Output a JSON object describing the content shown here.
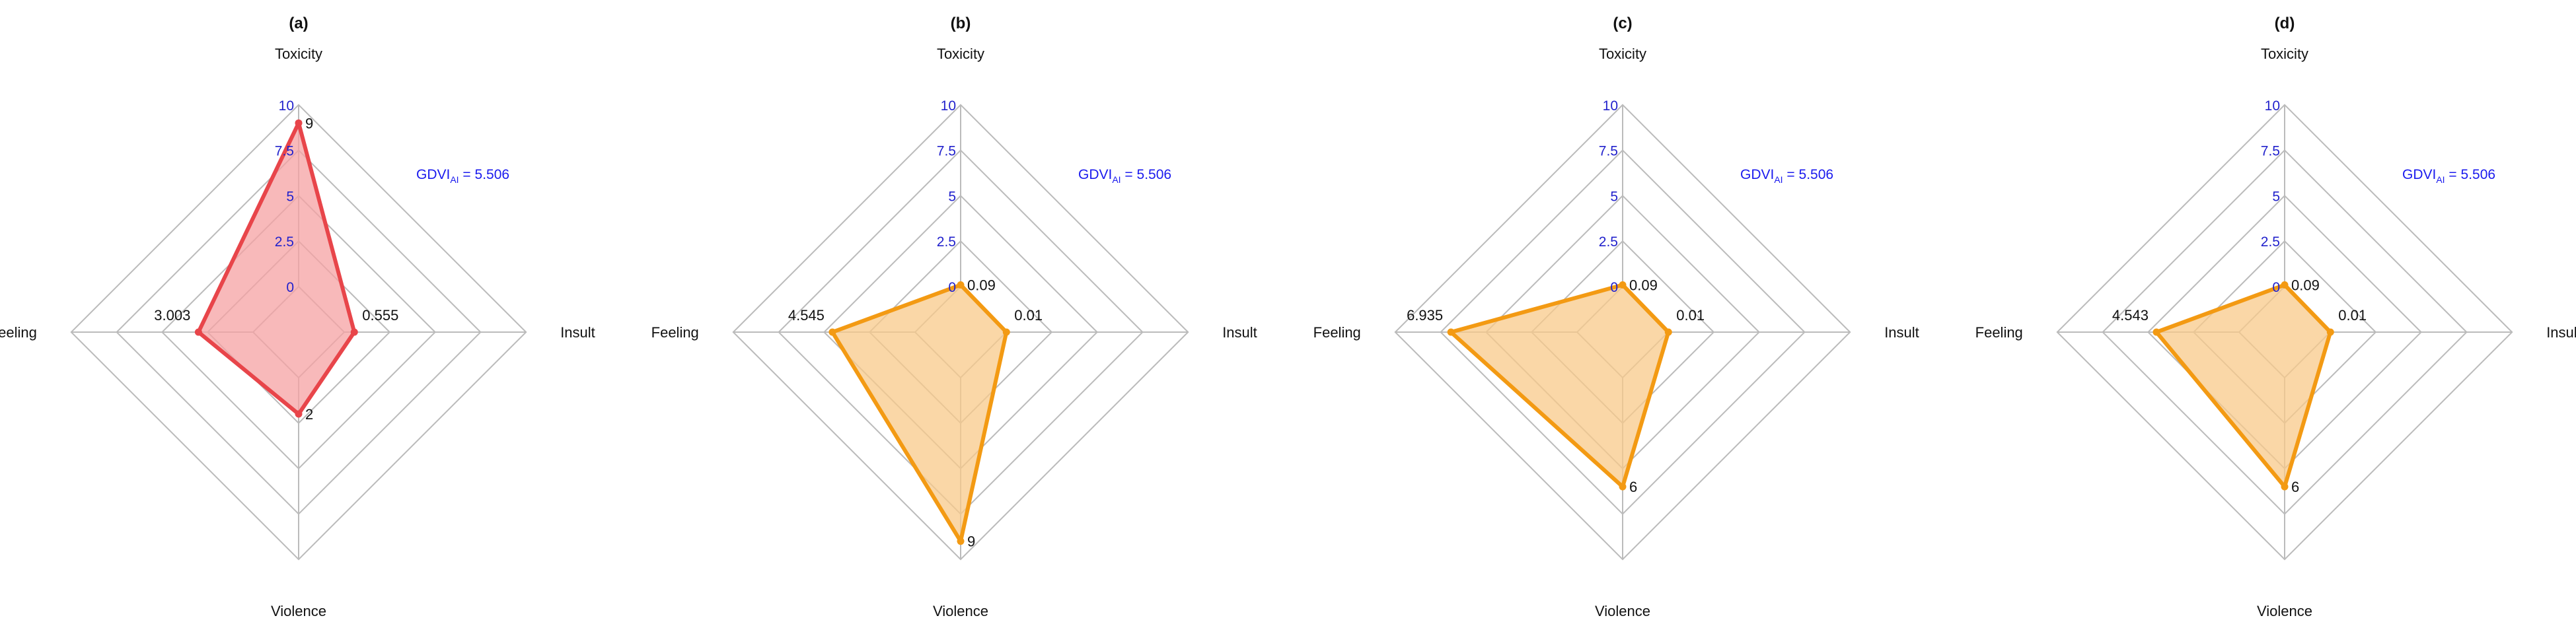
{
  "colors": {
    "grid": "#bbbbbb",
    "axis_tick": "#2222cc",
    "gdvi": "#1a1aee",
    "red_line": "#e8454a",
    "red_fill": "#f6a1a3",
    "orange_line": "#f39a13",
    "orange_fill": "#f8c98a"
  },
  "chart_data": [
    {
      "type": "radar",
      "title": "(a)",
      "axes": [
        "Toxicity",
        "Insult",
        "Violence",
        "Feeling"
      ],
      "values": [
        9,
        0.555,
        2,
        3.003
      ],
      "value_labels": [
        "9",
        "0.555",
        "2",
        "3.003"
      ],
      "rlim": [
        0,
        10
      ],
      "ticks": [
        "0",
        "2.5",
        "5",
        "7.5",
        "10"
      ],
      "tick_values": [
        0,
        2.5,
        5,
        7.5,
        10
      ],
      "annotation": {
        "prefix": "GDVI",
        "sub": "AI",
        "suffix": " = 5.506"
      },
      "color": "red"
    },
    {
      "type": "radar",
      "title": "(b)",
      "axes": [
        "Toxicity",
        "Insult",
        "Violence",
        "Feeling"
      ],
      "values": [
        0.09,
        0.01,
        9,
        4.545
      ],
      "value_labels": [
        "0.09",
        "0.01",
        "9",
        "4.545"
      ],
      "rlim": [
        0,
        10
      ],
      "ticks": [
        "0",
        "2.5",
        "5",
        "7.5",
        "10"
      ],
      "tick_values": [
        0,
        2.5,
        5,
        7.5,
        10
      ],
      "annotation": {
        "prefix": "GDVI",
        "sub": "AI",
        "suffix": " = 5.506"
      },
      "color": "orange"
    },
    {
      "type": "radar",
      "title": "(c)",
      "axes": [
        "Toxicity",
        "Insult",
        "Violence",
        "Feeling"
      ],
      "values": [
        0.09,
        0.01,
        6,
        6.935
      ],
      "value_labels": [
        "0.09",
        "0.01",
        "6",
        "6.935"
      ],
      "rlim": [
        0,
        10
      ],
      "ticks": [
        "0",
        "2.5",
        "5",
        "7.5",
        "10"
      ],
      "tick_values": [
        0,
        2.5,
        5,
        7.5,
        10
      ],
      "annotation": {
        "prefix": "GDVI",
        "sub": "AI",
        "suffix": " = 5.506"
      },
      "color": "orange"
    },
    {
      "type": "radar",
      "title": "(d)",
      "axes": [
        "Toxicity",
        "Insult",
        "Violence",
        "Feeling"
      ],
      "values": [
        0.09,
        0.01,
        6,
        4.543
      ],
      "value_labels": [
        "0.09",
        "0.01",
        "6",
        "4.543"
      ],
      "rlim": [
        0,
        10
      ],
      "ticks": [
        "0",
        "2.5",
        "5",
        "7.5",
        "10"
      ],
      "tick_values": [
        0,
        2.5,
        5,
        7.5,
        10
      ],
      "annotation": {
        "prefix": "GDVI",
        "sub": "AI",
        "suffix": " = 5.506"
      },
      "color": "orange"
    }
  ]
}
